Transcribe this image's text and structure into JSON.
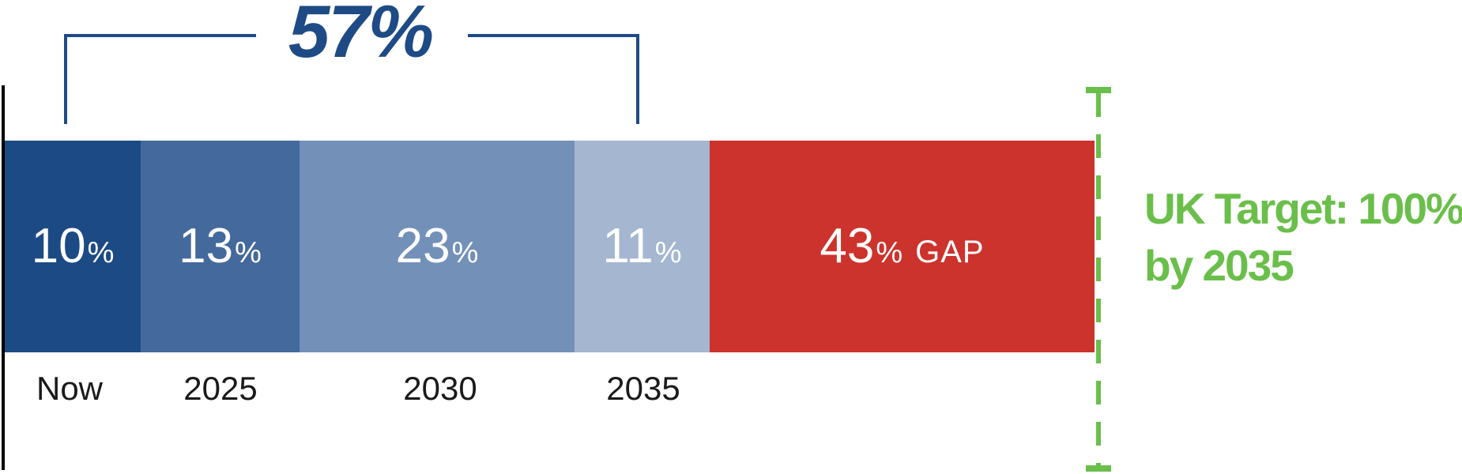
{
  "chart_data": {
    "type": "bar",
    "orientation": "horizontal",
    "stacked": true,
    "unit": "percent",
    "xlim": [
      0,
      100
    ],
    "grid": false,
    "legend": "none",
    "categories": [
      "Now",
      "2025",
      "2030",
      "2035",
      "GAP"
    ],
    "segments": [
      {
        "category": "Now",
        "value": 10,
        "value_label": "10",
        "suffix": "%",
        "color": "#1c4a85",
        "text_color": "#ffffff"
      },
      {
        "category": "2025",
        "value": 13,
        "value_label": "13",
        "suffix": "%",
        "color": "#44699c",
        "text_color": "#ffffff"
      },
      {
        "category": "2030",
        "value": 23,
        "value_label": "23",
        "suffix": "%",
        "color": "#7390b8",
        "text_color": "#ffffff"
      },
      {
        "category": "2035",
        "value": 11,
        "value_label": "11",
        "suffix": "%",
        "color": "#a4b6d0",
        "text_color": "#ffffff"
      },
      {
        "category": "GAP",
        "value": 43,
        "value_label": "43",
        "suffix": "%",
        "extra": "GAP",
        "color": "#cc332c",
        "text_color": "#ffffff"
      }
    ],
    "bracket": {
      "label": "57%",
      "total": 57,
      "covers": [
        "Now",
        "2025",
        "2030",
        "2035"
      ],
      "color": "#1e4b85"
    },
    "x_axis_labels": [
      "Now",
      "2025",
      "2030",
      "2035"
    ],
    "target_line": {
      "value": 100,
      "style": "dashed",
      "color": "#6abf4a"
    },
    "annotation": {
      "line1": "UK Target: 100%",
      "line2": "by 2035",
      "color": "#6abf4a"
    }
  },
  "axis": {
    "labels": {
      "l0": "Now",
      "l1": "2025",
      "l2": "2030",
      "l3": "2035"
    }
  },
  "colors": {
    "navy": "#1e4b85",
    "green": "#6abf4a",
    "red": "#cc332c",
    "axis_line": "#000000",
    "axis_text": "#1a1a1a"
  }
}
